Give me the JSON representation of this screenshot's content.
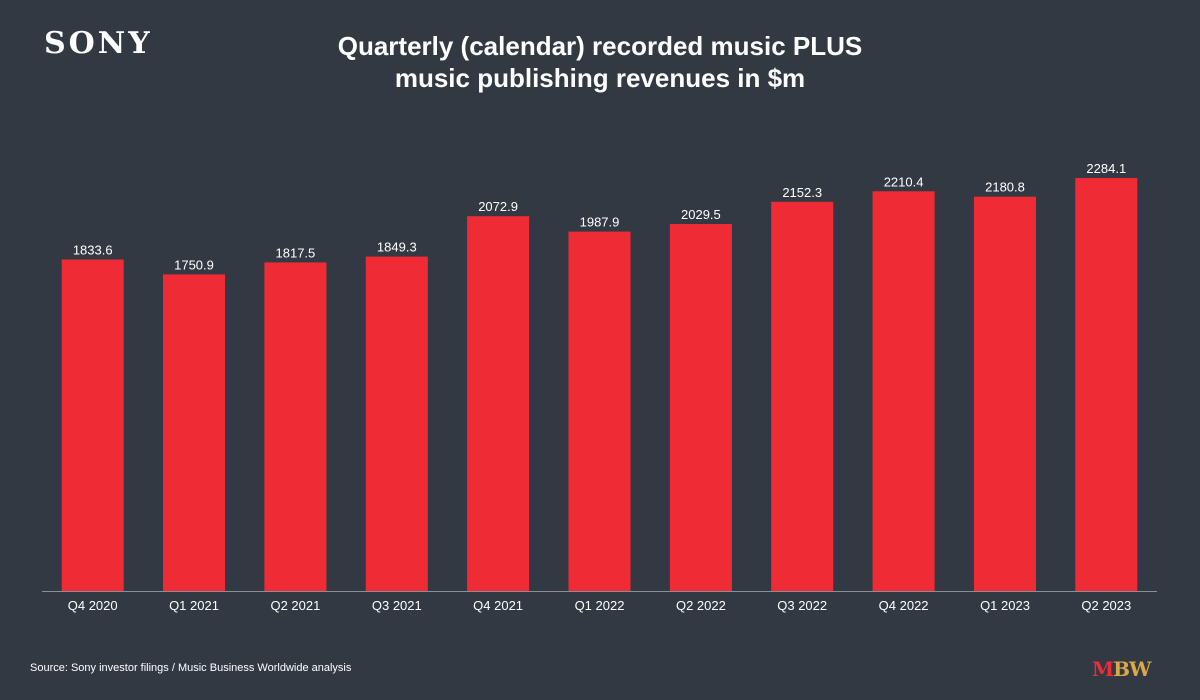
{
  "brand": {
    "logo_text": "SONY",
    "mbw_m": "M",
    "mbw_bw": "BW"
  },
  "title_line1": "Quarterly (calendar) recorded music PLUS",
  "title_line2": "music publishing revenues in $m",
  "source": "Source: Sony investor filings / Music Business Worldwide analysis",
  "colors": {
    "background": "#333942",
    "bar": "#ef2b36",
    "axis": "#8a8f96",
    "text": "#ffffff"
  },
  "chart_data": {
    "type": "bar",
    "title": "Quarterly (calendar) recorded music PLUS music publishing revenues in $m",
    "categories": [
      "Q4 2020",
      "Q1 2021",
      "Q2 2021",
      "Q3 2021",
      "Q4 2021",
      "Q1 2022",
      "Q2 2022",
      "Q3 2022",
      "Q4 2022",
      "Q1 2023",
      "Q2 2023"
    ],
    "values": [
      1833.6,
      1750.9,
      1817.5,
      1849.3,
      2072.9,
      1987.9,
      2029.5,
      2152.3,
      2210.4,
      2180.8,
      2284.1
    ],
    "value_labels": [
      "1833.6",
      "1750.9",
      "1817.5",
      "1849.3",
      "2072.9",
      "1987.9",
      "2029.5",
      "2152.3",
      "2210.4",
      "2180.8",
      "2284.1"
    ],
    "xlabel": "",
    "ylabel": "",
    "ylim": [
      0,
      2500
    ],
    "grid": false,
    "legend": "none"
  }
}
